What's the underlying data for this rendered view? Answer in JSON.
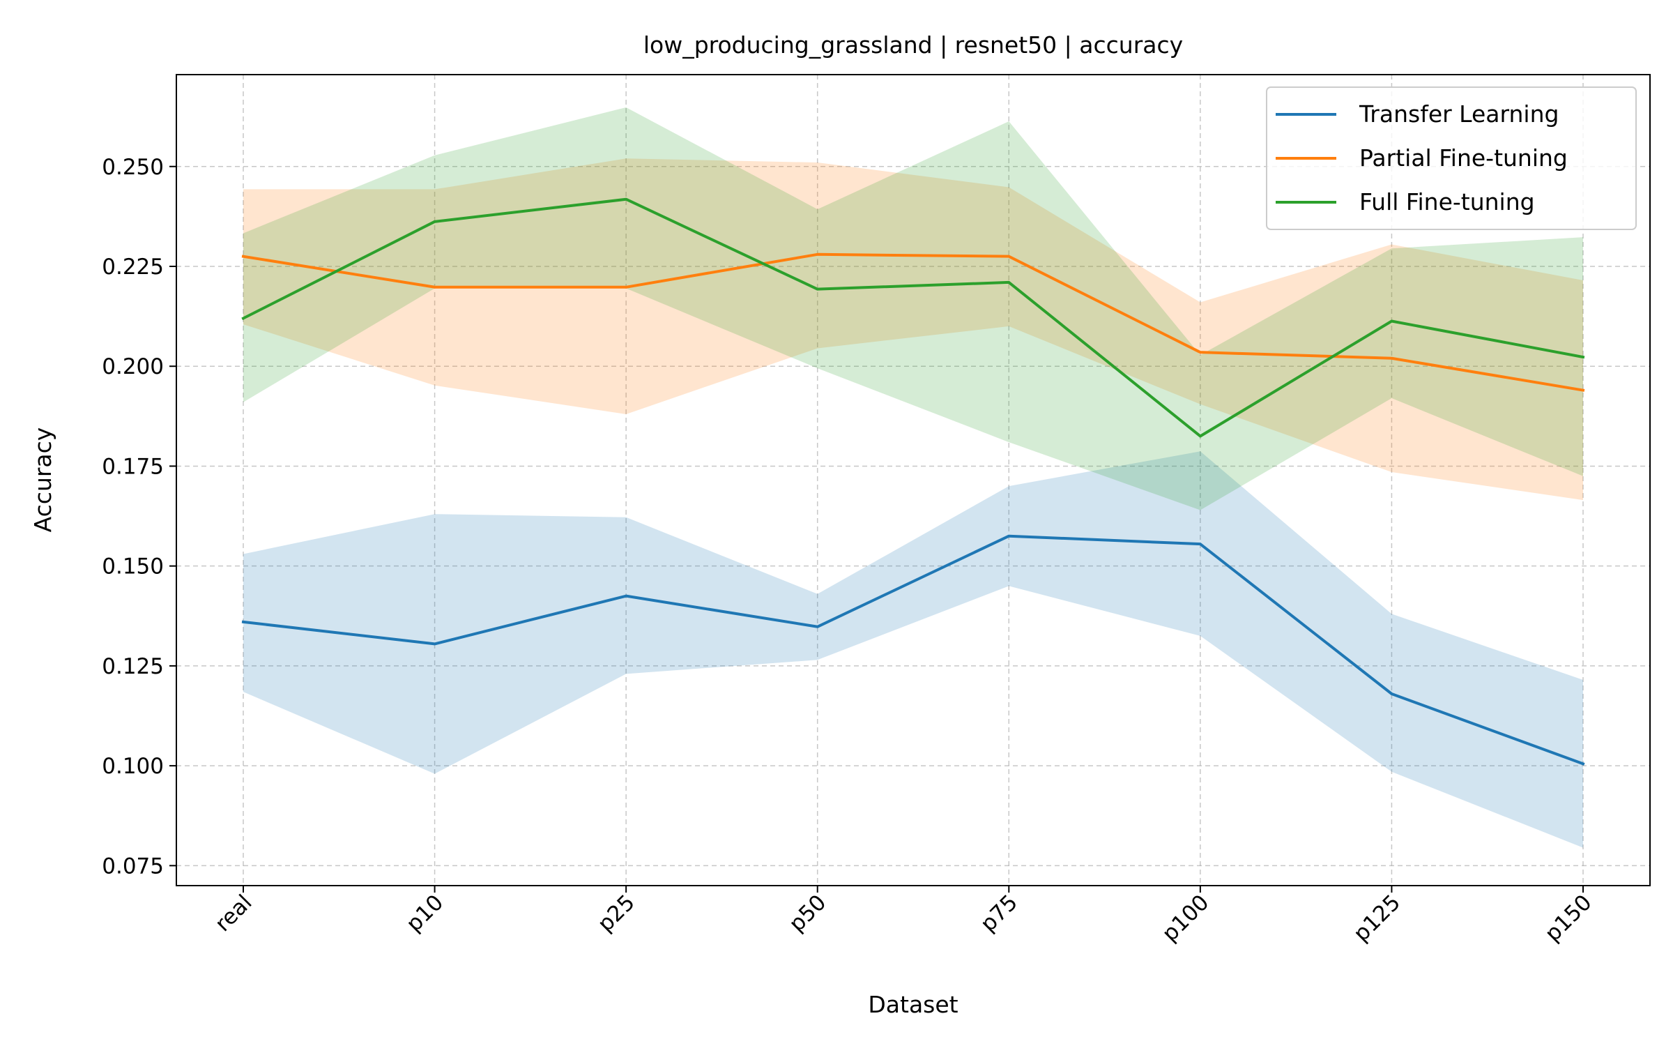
{
  "chart_data": {
    "type": "line",
    "title": "low_producing_grassland | resnet50 | accuracy",
    "xlabel": "Dataset",
    "ylabel": "Accuracy",
    "categories": [
      "real",
      "p10",
      "p25",
      "p50",
      "p75",
      "p100",
      "p125",
      "p150"
    ],
    "ylim": [
      0.07,
      0.273
    ],
    "yticks": [
      0.075,
      0.1,
      0.125,
      0.15,
      0.175,
      0.2,
      0.225,
      0.25
    ],
    "ytick_labels": [
      "0.075",
      "0.100",
      "0.125",
      "0.150",
      "0.175",
      "0.200",
      "0.225",
      "0.250"
    ],
    "grid": true,
    "legend_position": "top-right",
    "series": [
      {
        "name": "Transfer Learning",
        "color": "#1f77b4",
        "values": [
          0.136,
          0.1305,
          0.1425,
          0.1348,
          0.1575,
          0.1555,
          0.118,
          0.1005
        ],
        "lower": [
          0.1185,
          0.098,
          0.123,
          0.1265,
          0.145,
          0.1325,
          0.0985,
          0.0795
        ],
        "upper": [
          0.153,
          0.163,
          0.1622,
          0.143,
          0.17,
          0.1787,
          0.138,
          0.1215
        ]
      },
      {
        "name": "Partial Fine-tuning",
        "color": "#ff7f0e",
        "values": [
          0.2275,
          0.2198,
          0.2198,
          0.228,
          0.2275,
          0.2035,
          0.202,
          0.194
        ],
        "lower": [
          0.2105,
          0.1952,
          0.188,
          0.2045,
          0.21,
          0.1905,
          0.1735,
          0.1665
        ],
        "upper": [
          0.2443,
          0.2443,
          0.252,
          0.251,
          0.2448,
          0.216,
          0.2305,
          0.2215
        ]
      },
      {
        "name": "Full Fine-tuning",
        "color": "#2ca02c",
        "values": [
          0.212,
          0.2362,
          0.2418,
          0.2193,
          0.221,
          0.1825,
          0.2113,
          0.2023
        ],
        "lower": [
          0.191,
          0.2195,
          0.2195,
          0.1995,
          0.181,
          0.164,
          0.192,
          0.1725
        ],
        "upper": [
          0.2333,
          0.2528,
          0.2648,
          0.2393,
          0.2613,
          0.2028,
          0.2295,
          0.2323
        ]
      }
    ]
  }
}
